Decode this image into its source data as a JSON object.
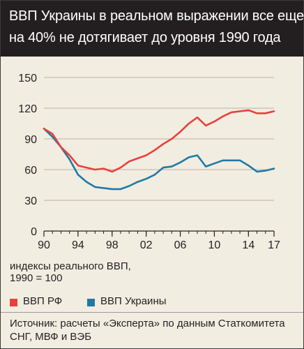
{
  "title_lines": [
    "ВВП Украины в реальном выражении все еще",
    "на 40% не дотягивает до уровня 1990 года"
  ],
  "axis_caption_lines": [
    "индексы реального ВВП,",
    "1990 = 100"
  ],
  "source_lines": [
    "Источник: расчеты «Эксперта» по данным Статкомитета",
    "СНГ, МВФ и ВЭБ"
  ],
  "chart_data": {
    "type": "line",
    "title": "ВВП Украины в реальном выражении все еще на 40% не дотягивает до уровня 1990 года",
    "xlabel": "",
    "ylabel": "индексы реального ВВП, 1990 = 100",
    "x": [
      1990,
      1991,
      1992,
      1993,
      1994,
      1995,
      1996,
      1997,
      1998,
      1999,
      2000,
      2001,
      2002,
      2003,
      2004,
      2005,
      2006,
      2007,
      2008,
      2009,
      2010,
      2011,
      2012,
      2013,
      2014,
      2015,
      2016,
      2017
    ],
    "series": [
      {
        "name": "ВВП РФ",
        "color": "#e8403c",
        "values": [
          100,
          95,
          82,
          74,
          64,
          62,
          60,
          61,
          58,
          62,
          68,
          71,
          74,
          79,
          85,
          90,
          97,
          105,
          111,
          103,
          107,
          112,
          116,
          117,
          118,
          115,
          115,
          117
        ]
      },
      {
        "name": "ВВП Украины",
        "color": "#1f7aa6",
        "values": [
          100,
          92,
          82,
          70,
          55,
          48,
          43,
          42,
          41,
          41,
          44,
          48,
          51,
          55,
          62,
          63,
          67,
          72,
          74,
          63,
          66,
          69,
          69,
          69,
          64,
          58,
          59,
          61
        ]
      }
    ],
    "xlim": [
      1990,
      2017
    ],
    "ylim": [
      0,
      150
    ],
    "yticks": [
      0,
      30,
      60,
      90,
      120,
      150
    ],
    "xtick_values": [
      1990,
      1994,
      1998,
      2002,
      2006,
      2010,
      2014,
      2017
    ],
    "xtick_labels": [
      "90",
      "94",
      "98",
      "02",
      "06",
      "10",
      "14",
      "17"
    ],
    "grid": true,
    "legend": "bottom"
  }
}
